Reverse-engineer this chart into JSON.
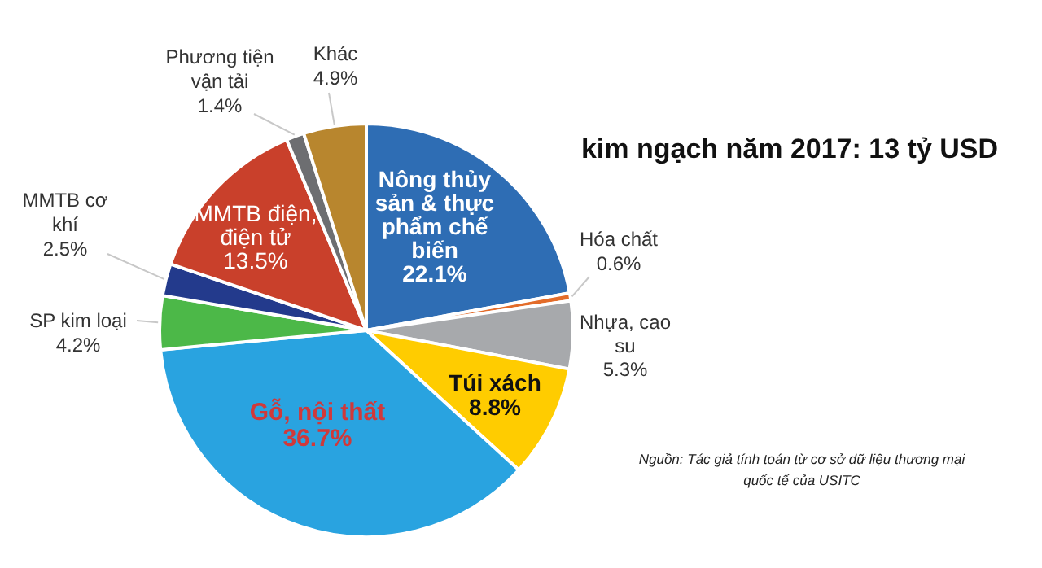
{
  "chart_data": {
    "type": "pie",
    "title": "kim ngạch năm 2017: 13 tỷ USD",
    "categories": [
      "Nông thủy sản & thực phẩm chế biến",
      "Hóa chất",
      "Nhựa, cao su",
      "Túi xách",
      "Gỗ, nội thất",
      "SP kim loại",
      "MMTB cơ khí",
      "MMTB điện, điện tử",
      "Phương tiện vận tải",
      "Khác"
    ],
    "values": [
      22.1,
      0.6,
      5.3,
      8.8,
      36.7,
      4.2,
      2.5,
      13.5,
      1.4,
      4.9
    ],
    "value_labels": [
      "22.1%",
      "0.6%",
      "5.3%",
      "8.8%",
      "36.7%",
      "4.2%",
      "2.5%",
      "13.5%",
      "1.4%",
      "4.9%"
    ],
    "colors": [
      "#2e6db4",
      "#e36c2a",
      "#a7a9ac",
      "#ffcc00",
      "#29a3e0",
      "#4cb848",
      "#233a8c",
      "#c9402b",
      "#6d6e71",
      "#b8862e"
    ],
    "annotations": [
      "Nguồn: Tác giả tính toán từ cơ sở dữ liệu thương mại quốc tế của USITC"
    ]
  }
}
